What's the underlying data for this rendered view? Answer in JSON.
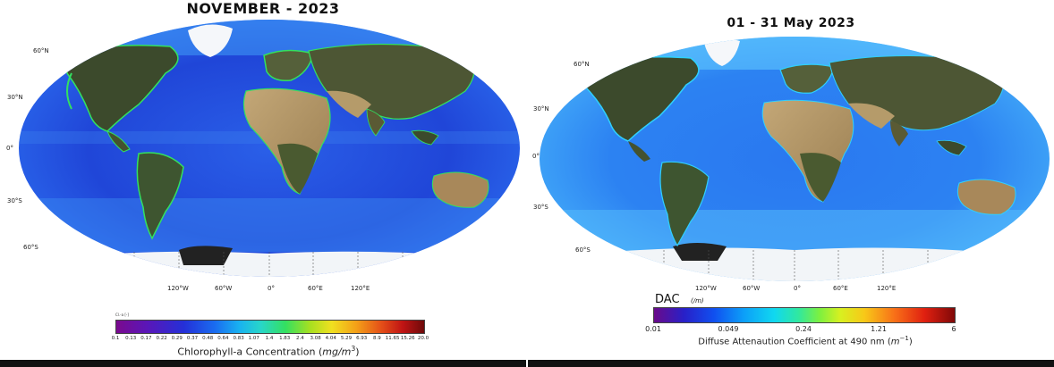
{
  "left": {
    "title": "NOVEMBER - 2023",
    "lat_labels": [
      "60°N",
      "30°N",
      "0°",
      "30°S",
      "60°S"
    ],
    "lon_labels": [
      "120°W",
      "60°W",
      "0°",
      "60°E",
      "120°E"
    ],
    "colorbar_small_label": "Cl.-a [-]",
    "colorbar_ticks": [
      "0.1",
      "0.13",
      "0.17",
      "0.22",
      "0.29",
      "0.37",
      "0.48",
      "0.64",
      "0.83",
      "1.07",
      "1.4",
      "1.83",
      "2.4",
      "3.08",
      "4.04",
      "5.29",
      "6.93",
      "8.9",
      "11.65",
      "15.26",
      "20.0"
    ],
    "colorbar_caption_prefix": "Chlorophyll-a Concentration (",
    "colorbar_caption_unit": "mg/m",
    "colorbar_caption_exp": "3",
    "colorbar_caption_suffix": ")"
  },
  "right": {
    "title": "01 - 31 May 2023",
    "lat_labels": [
      "60°N",
      "30°N",
      "0°",
      "30°S",
      "60°S"
    ],
    "lon_labels": [
      "120°W",
      "60°W",
      "0°",
      "60°E",
      "120°E"
    ],
    "dac_label": "DAC",
    "dac_unit": "(/m)",
    "colorbar_ticks": [
      "0.01",
      "0.049",
      "0.24",
      "1.21",
      "6"
    ],
    "colorbar_caption_prefix": "Diffuse Attenaution Coefficient at 490 nm (",
    "colorbar_caption_unit": "m",
    "colorbar_caption_exp": "−1",
    "colorbar_caption_suffix": ")"
  },
  "colors": {
    "ocean_deep": "#1b3fd6",
    "ocean_mid": "#2f78f0",
    "ocean_light": "#5fc6ff",
    "coastal_green": "#33e060",
    "land_dark": "#3c4a2c",
    "land_desert": "#b39a6a",
    "ice": "#f2f5f8"
  }
}
